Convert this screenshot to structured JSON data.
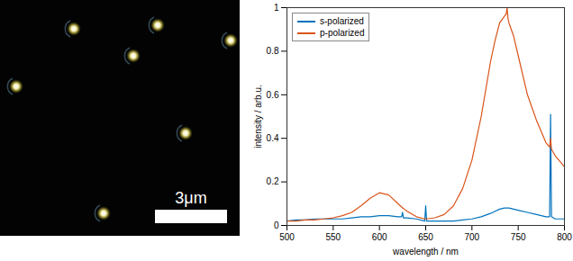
{
  "image": {
    "scale_bar": "3μm"
  },
  "chart_data": {
    "type": "line",
    "x_label": "wavelength / nm",
    "y_label": "intensity / arb.u.",
    "x": [
      500,
      510,
      520,
      530,
      540,
      550,
      560,
      570,
      580,
      590,
      600,
      610,
      620,
      624,
      625,
      626,
      630,
      640,
      649,
      650,
      651,
      660,
      670,
      680,
      690,
      700,
      710,
      720,
      725,
      730,
      735,
      737,
      738,
      739,
      740,
      745,
      750,
      760,
      770,
      780,
      784,
      785,
      786,
      790,
      800
    ],
    "series": [
      {
        "name": "s-polarized",
        "color": "#0072BD",
        "values": [
          0.02,
          0.025,
          0.025,
          0.03,
          0.03,
          0.03,
          0.03,
          0.035,
          0.04,
          0.04,
          0.045,
          0.045,
          0.04,
          0.04,
          0.06,
          0.035,
          0.035,
          0.03,
          0.02,
          0.09,
          0.02,
          0.02,
          0.02,
          0.02,
          0.025,
          0.03,
          0.04,
          0.055,
          0.065,
          0.075,
          0.08,
          0.08,
          0.08,
          0.08,
          0.08,
          0.075,
          0.07,
          0.06,
          0.05,
          0.04,
          0.04,
          0.51,
          0.04,
          0.03,
          0.03
        ]
      },
      {
        "name": "p-polarized",
        "color": "#D95319",
        "values": [
          0.02,
          0.02,
          0.025,
          0.025,
          0.03,
          0.035,
          0.045,
          0.06,
          0.09,
          0.125,
          0.15,
          0.14,
          0.1,
          0.085,
          0.08,
          0.078,
          0.065,
          0.04,
          0.03,
          0.03,
          0.03,
          0.035,
          0.05,
          0.09,
          0.17,
          0.3,
          0.5,
          0.75,
          0.85,
          0.93,
          0.96,
          0.97,
          1.0,
          0.95,
          0.93,
          0.87,
          0.78,
          0.6,
          0.48,
          0.38,
          0.36,
          0.4,
          0.35,
          0.32,
          0.27
        ]
      }
    ],
    "xlim": [
      500,
      800
    ],
    "xticks": [
      500,
      550,
      600,
      650,
      700,
      750,
      800
    ],
    "ylim": [
      0,
      1
    ],
    "yticks": [
      0,
      0.2,
      0.4,
      0.6,
      0.8,
      1
    ],
    "legend": "upper left",
    "grid": false
  }
}
